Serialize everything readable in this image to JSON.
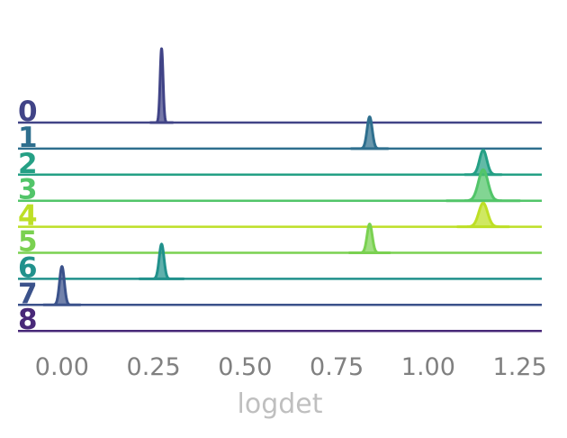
{
  "chart_data": {
    "type": "area",
    "title": "",
    "xlabel": "logdet",
    "ylabel": "",
    "xlim": [
      -0.12,
      1.31
    ],
    "x_ticks": [
      "0.00",
      "0.25",
      "0.50",
      "0.75",
      "1.00",
      "1.25"
    ],
    "x_tick_values": [
      0.0,
      0.25,
      0.5,
      0.75,
      1.0,
      1.25
    ],
    "grid": false,
    "series": [
      {
        "name": "0",
        "color": "#414487",
        "peaks": [
          {
            "x": 0.272,
            "height": 1.0,
            "sigma": 0.004,
            "halfwidth": 0.03
          }
        ]
      },
      {
        "name": "1",
        "color": "#2e6f8e",
        "peaks": [
          {
            "x": 0.84,
            "height": 0.43,
            "sigma": 0.007,
            "halfwidth": 0.05
          }
        ]
      },
      {
        "name": "2",
        "color": "#25a085",
        "peaks": [
          {
            "x": 1.15,
            "height": 0.33,
            "sigma": 0.01,
            "halfwidth": 0.05
          }
        ]
      },
      {
        "name": "3",
        "color": "#52c569",
        "peaks": [
          {
            "x": 1.15,
            "height": 0.42,
            "sigma": 0.013,
            "halfwidth": 0.1
          }
        ]
      },
      {
        "name": "4",
        "color": "#bddf26",
        "peaks": [
          {
            "x": 1.15,
            "height": 0.32,
            "sigma": 0.012,
            "halfwidth": 0.07
          }
        ]
      },
      {
        "name": "5",
        "color": "#7ad151",
        "peaks": [
          {
            "x": 0.84,
            "height": 0.39,
            "sigma": 0.007,
            "halfwidth": 0.055
          }
        ]
      },
      {
        "name": "6",
        "color": "#21918c",
        "peaks": [
          {
            "x": 0.272,
            "height": 0.47,
            "sigma": 0.0065,
            "halfwidth": 0.06
          }
        ]
      },
      {
        "name": "7",
        "color": "#3b528b",
        "peaks": [
          {
            "x": 0.0,
            "height": 0.52,
            "sigma": 0.0065,
            "halfwidth": 0.05
          }
        ]
      },
      {
        "name": "8",
        "color": "#482878",
        "peaks": []
      }
    ]
  }
}
